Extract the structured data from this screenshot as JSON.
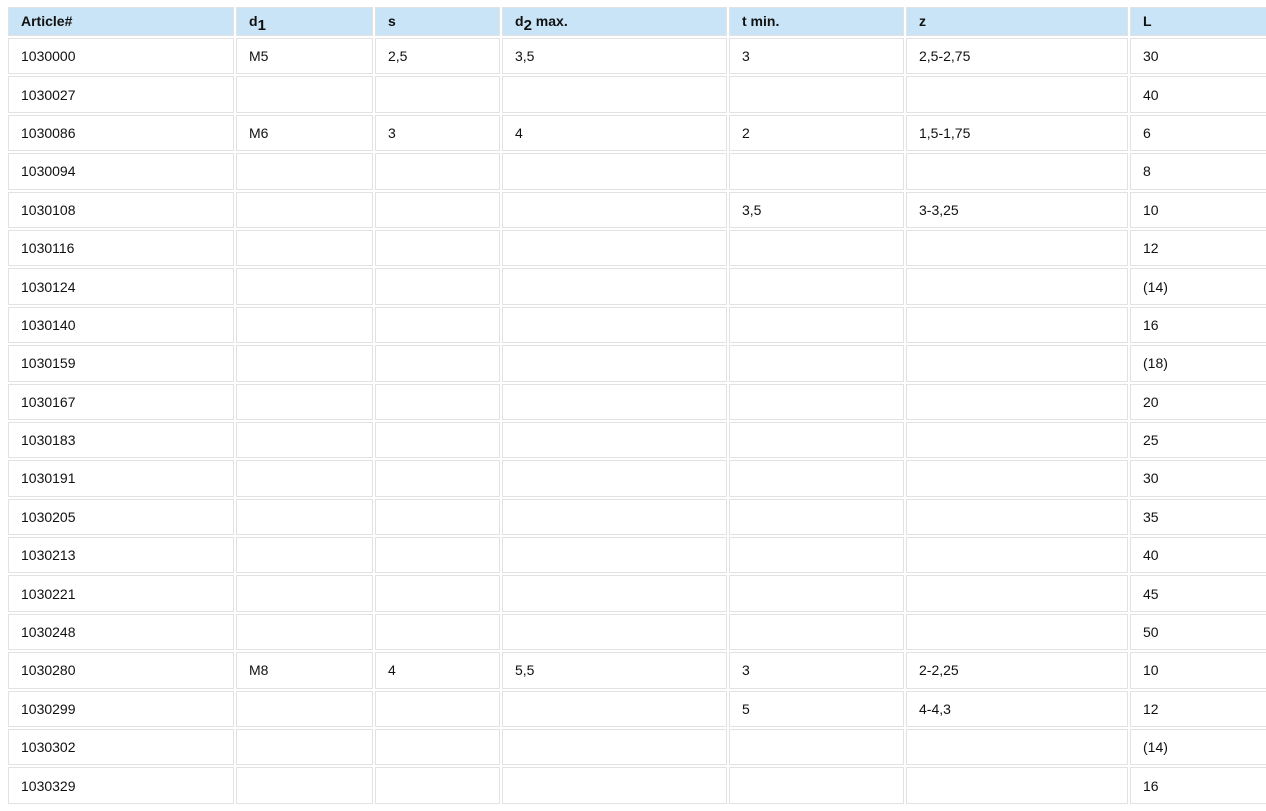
{
  "table": {
    "headers": [
      {
        "main": "Article#",
        "sub": "",
        "rest": ""
      },
      {
        "main": "d",
        "sub": "1",
        "rest": ""
      },
      {
        "main": "s",
        "sub": "",
        "rest": ""
      },
      {
        "main": "d",
        "sub": "2",
        "rest": " max."
      },
      {
        "main": "t min.",
        "sub": "",
        "rest": ""
      },
      {
        "main": "z",
        "sub": "",
        "rest": ""
      },
      {
        "main": "L",
        "sub": "",
        "rest": ""
      }
    ],
    "rows": [
      [
        "1030000",
        "M5",
        "2,5",
        "3,5",
        "3",
        "2,5-2,75",
        "30"
      ],
      [
        "1030027",
        "",
        "",
        "",
        "",
        "",
        "40"
      ],
      [
        "1030086",
        "M6",
        "3",
        "4",
        "2",
        "1,5-1,75",
        "6"
      ],
      [
        "1030094",
        "",
        "",
        "",
        "",
        "",
        "8"
      ],
      [
        "1030108",
        "",
        "",
        "",
        "3,5",
        "3-3,25",
        "10"
      ],
      [
        "1030116",
        "",
        "",
        "",
        "",
        "",
        "12"
      ],
      [
        "1030124",
        "",
        "",
        "",
        "",
        "",
        "(14)"
      ],
      [
        "1030140",
        "",
        "",
        "",
        "",
        "",
        "16"
      ],
      [
        "1030159",
        "",
        "",
        "",
        "",
        "",
        "(18)"
      ],
      [
        "1030167",
        "",
        "",
        "",
        "",
        "",
        "20"
      ],
      [
        "1030183",
        "",
        "",
        "",
        "",
        "",
        "25"
      ],
      [
        "1030191",
        "",
        "",
        "",
        "",
        "",
        "30"
      ],
      [
        "1030205",
        "",
        "",
        "",
        "",
        "",
        "35"
      ],
      [
        "1030213",
        "",
        "",
        "",
        "",
        "",
        "40"
      ],
      [
        "1030221",
        "",
        "",
        "",
        "",
        "",
        "45"
      ],
      [
        "1030248",
        "",
        "",
        "",
        "",
        "",
        "50"
      ],
      [
        "1030280",
        "M8",
        "4",
        "5,5",
        "3",
        "2-2,25",
        "10"
      ],
      [
        "1030299",
        "",
        "",
        "",
        "5",
        "4-4,3",
        "12"
      ],
      [
        "1030302",
        "",
        "",
        "",
        "",
        "",
        "(14)"
      ],
      [
        "1030329",
        "",
        "",
        "",
        "",
        "",
        "16"
      ]
    ]
  },
  "colors": {
    "header_bg": "#c9e4f6",
    "border": "#e2e2e2"
  }
}
